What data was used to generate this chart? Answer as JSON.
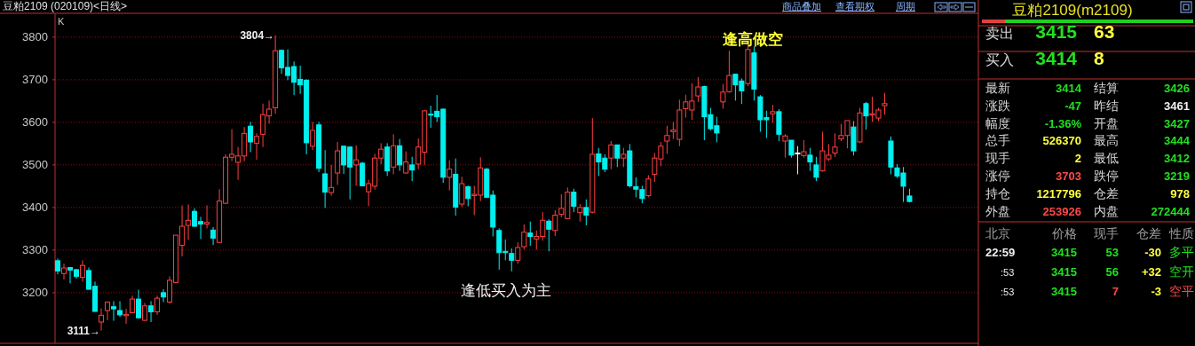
{
  "chart_data": [
    {
      "type": "candlestick",
      "title": "豆粕2109 (020109)<日线>",
      "ylabel": "K",
      "categories": [
        null,
        null,
        null,
        null,
        null,
        null,
        null,
        null,
        null,
        null,
        null,
        null,
        null,
        null,
        null,
        null,
        null,
        null,
        null,
        null,
        null,
        null,
        null,
        null,
        null,
        null,
        null,
        null,
        null,
        null,
        null,
        null,
        null,
        null,
        null,
        null,
        null,
        null,
        null,
        null,
        null,
        null,
        null,
        null,
        null,
        null,
        null,
        null,
        null,
        null,
        null,
        null,
        null,
        null,
        null,
        null,
        null,
        null,
        null,
        null,
        null,
        null,
        null,
        null,
        null,
        null,
        null,
        null,
        null,
        null,
        null,
        null,
        null,
        null,
        null,
        null,
        null,
        null,
        null,
        null,
        null,
        null,
        null,
        null,
        null,
        null,
        null,
        null,
        null,
        null,
        null,
        null,
        null,
        null,
        null,
        null,
        null,
        null,
        null,
        null,
        null,
        null,
        null,
        null,
        null,
        null,
        null,
        null,
        null,
        null,
        null,
        null,
        null,
        null,
        null,
        null,
        null,
        null,
        null,
        null,
        null,
        null,
        null,
        null,
        null,
        null,
        null,
        null,
        null,
        null,
        null,
        null,
        null,
        null,
        null,
        null,
        null,
        null
      ],
      "ohlc": [
        [
          3275,
          3280,
          3243,
          3251
        ],
        [
          3245,
          3268,
          3231,
          3258
        ],
        [
          3259,
          3260,
          3222,
          3253
        ],
        [
          3254,
          3256,
          3233,
          3238
        ],
        [
          3236,
          3276,
          3226,
          3264
        ],
        [
          3252,
          3259,
          3207,
          3208
        ],
        [
          3215,
          3226,
          3155,
          3156
        ],
        [
          3131,
          3163,
          3111,
          3147
        ],
        [
          3158,
          3179,
          3135,
          3178
        ],
        [
          3167,
          3180,
          3134,
          3162
        ],
        [
          3158,
          3180,
          3143,
          3148
        ],
        [
          3146,
          3162,
          3127,
          3149
        ],
        [
          3153,
          3193,
          3153,
          3185
        ],
        [
          3185,
          3207,
          3139,
          3141
        ],
        [
          3135,
          3176,
          3134,
          3169
        ],
        [
          3169,
          3180,
          3131,
          3155
        ],
        [
          3155,
          3193,
          3148,
          3187
        ],
        [
          3200,
          3208,
          3178,
          3190
        ],
        [
          3178,
          3238,
          3174,
          3229
        ],
        [
          3224,
          3335,
          3222,
          3335
        ],
        [
          3311,
          3405,
          3285,
          3356
        ],
        [
          3358,
          3407,
          3324,
          3370
        ],
        [
          3391,
          3398,
          3354,
          3356
        ],
        [
          3367,
          3378,
          3326,
          3361
        ],
        [
          3361,
          3405,
          3351,
          3365
        ],
        [
          3347,
          3354,
          3312,
          3328
        ],
        [
          3318,
          3443,
          3317,
          3415
        ],
        [
          3410,
          3525,
          3408,
          3518
        ],
        [
          3518,
          3584,
          3509,
          3525
        ],
        [
          3506,
          3542,
          3465,
          3521
        ],
        [
          3521,
          3589,
          3509,
          3574
        ],
        [
          3591,
          3601,
          3530,
          3554
        ],
        [
          3551,
          3574,
          3512,
          3567
        ],
        [
          3572,
          3644,
          3542,
          3618
        ],
        [
          3615,
          3651,
          3597,
          3631
        ],
        [
          3634,
          3804,
          3620,
          3768
        ],
        [
          3769,
          3771,
          3714,
          3728
        ],
        [
          3729,
          3771,
          3699,
          3710
        ],
        [
          3731,
          3743,
          3664,
          3694
        ],
        [
          3701,
          3733,
          3667,
          3688
        ],
        [
          3699,
          3701,
          3525,
          3552
        ],
        [
          3544,
          3601,
          3535,
          3581
        ],
        [
          3594,
          3601,
          3483,
          3492
        ],
        [
          3479,
          3535,
          3399,
          3436
        ],
        [
          3435,
          3500,
          3428,
          3447
        ],
        [
          3481,
          3554,
          3453,
          3533
        ],
        [
          3544,
          3544,
          3479,
          3500
        ],
        [
          3542,
          3542,
          3419,
          3495
        ],
        [
          3500,
          3546,
          3451,
          3512
        ],
        [
          3504,
          3507,
          3450,
          3451
        ],
        [
          3437,
          3465,
          3403,
          3456
        ],
        [
          3450,
          3526,
          3442,
          3516
        ],
        [
          3516,
          3551,
          3502,
          3537
        ],
        [
          3542,
          3551,
          3474,
          3486
        ],
        [
          3495,
          3572,
          3478,
          3545
        ],
        [
          3545,
          3561,
          3486,
          3500
        ],
        [
          3481,
          3532,
          3479,
          3507
        ],
        [
          3500,
          3519,
          3462,
          3488
        ],
        [
          3502,
          3562,
          3490,
          3542
        ],
        [
          3530,
          3629,
          3500,
          3627
        ],
        [
          3619,
          3639,
          3587,
          3617
        ],
        [
          3626,
          3664,
          3601,
          3613
        ],
        [
          3631,
          3632,
          3458,
          3471
        ],
        [
          3471,
          3511,
          3440,
          3490
        ],
        [
          3478,
          3515,
          3381,
          3401
        ],
        [
          3408,
          3472,
          3401,
          3456
        ],
        [
          3449,
          3451,
          3403,
          3421
        ],
        [
          3428,
          3451,
          3382,
          3431
        ],
        [
          3429,
          3518,
          3415,
          3493
        ],
        [
          3490,
          3493,
          3422,
          3424
        ],
        [
          3429,
          3440,
          3332,
          3354
        ],
        [
          3346,
          3351,
          3254,
          3294
        ],
        [
          3297,
          3325,
          3276,
          3294
        ],
        [
          3292,
          3304,
          3250,
          3276
        ],
        [
          3276,
          3318,
          3268,
          3306
        ],
        [
          3308,
          3360,
          3301,
          3342
        ],
        [
          3340,
          3367,
          3310,
          3332
        ],
        [
          3326,
          3346,
          3301,
          3332
        ],
        [
          3332,
          3389,
          3322,
          3370
        ],
        [
          3368,
          3372,
          3297,
          3349
        ],
        [
          3346,
          3394,
          3333,
          3382
        ],
        [
          3384,
          3431,
          3377,
          3398
        ],
        [
          3374,
          3447,
          3372,
          3436
        ],
        [
          3436,
          3444,
          3389,
          3403
        ],
        [
          3388,
          3408,
          3367,
          3400
        ],
        [
          3400,
          3419,
          3358,
          3382
        ],
        [
          3389,
          3610,
          3386,
          3525
        ],
        [
          3526,
          3540,
          3474,
          3507
        ],
        [
          3516,
          3525,
          3483,
          3490
        ],
        [
          3516,
          3556,
          3490,
          3547
        ],
        [
          3547,
          3547,
          3495,
          3516
        ],
        [
          3516,
          3540,
          3495,
          3525
        ],
        [
          3533,
          3549,
          3447,
          3451
        ],
        [
          3449,
          3471,
          3424,
          3443
        ],
        [
          3442,
          3451,
          3410,
          3421
        ],
        [
          3428,
          3476,
          3424,
          3467
        ],
        [
          3478,
          3528,
          3460,
          3516
        ],
        [
          3514,
          3554,
          3497,
          3544
        ],
        [
          3556,
          3592,
          3526,
          3569
        ],
        [
          3578,
          3601,
          3561,
          3582
        ],
        [
          3560,
          3653,
          3544,
          3629
        ],
        [
          3632,
          3665,
          3611,
          3648
        ],
        [
          3629,
          3692,
          3606,
          3650
        ],
        [
          3662,
          3706,
          3648,
          3683
        ],
        [
          3684,
          3686,
          3558,
          3613
        ],
        [
          3618,
          3634,
          3581,
          3585
        ],
        [
          3592,
          3613,
          3553,
          3575
        ],
        [
          3648,
          3690,
          3632,
          3671
        ],
        [
          3672,
          3768,
          3669,
          3710
        ],
        [
          3713,
          3714,
          3651,
          3688
        ],
        [
          3697,
          3703,
          3643,
          3674
        ],
        [
          3691,
          3785,
          3685,
          3771
        ],
        [
          3763,
          3778,
          3651,
          3678
        ],
        [
          3660,
          3664,
          3578,
          3606
        ],
        [
          3611,
          3627,
          3563,
          3606
        ],
        [
          3620,
          3641,
          3599,
          3625
        ],
        [
          3625,
          3631,
          3556,
          3572
        ],
        [
          3556,
          3572,
          3517,
          3568
        ],
        [
          3558,
          3558,
          3517,
          3523
        ],
        [
          3528,
          3544,
          3478,
          3528
        ],
        [
          3522,
          3558,
          3517,
          3531
        ],
        [
          3523,
          3540,
          3486,
          3507
        ],
        [
          3500,
          3519,
          3462,
          3471
        ],
        [
          3486,
          3578,
          3484,
          3533
        ],
        [
          3514,
          3549,
          3509,
          3523
        ],
        [
          3528,
          3574,
          3519,
          3542
        ],
        [
          3561,
          3596,
          3556,
          3569
        ],
        [
          3569,
          3604,
          3539,
          3604
        ],
        [
          3589,
          3603,
          3522,
          3533
        ],
        [
          3554,
          3634,
          3551,
          3622
        ],
        [
          3644,
          3648,
          3583,
          3615
        ],
        [
          3617,
          3660,
          3601,
          3620
        ],
        [
          3610,
          3634,
          3603,
          3629
        ],
        [
          3639,
          3669,
          3618,
          3644
        ],
        [
          3556,
          3567,
          3478,
          3495
        ],
        [
          3493,
          3502,
          3469,
          3474
        ],
        [
          3481,
          3495,
          3413,
          3450
        ],
        [
          3427,
          3444,
          3412,
          3414
        ]
      ],
      "ylim": [
        3081,
        3856
      ],
      "yticks": [
        3200,
        3300,
        3400,
        3500,
        3600,
        3700,
        3800
      ],
      "grid": "y",
      "annotations": [
        "3804→",
        "3111→",
        "逢高做空",
        "逢低买入为主",
        "商品叠加",
        "查看期权",
        "周期"
      ]
    },
    {
      "type": "other",
      "title": "豆粕2109(m2109)",
      "annotations": [
        "卖出",
        "3415",
        "63",
        "买入",
        "3414",
        "8",
        "最新",
        "3414",
        "结算",
        "3426",
        "涨跌",
        "-47",
        "昨结",
        "3461",
        "幅度",
        "-1.36%",
        "开盘",
        "3427",
        "总手",
        "526370",
        "最高",
        "3444",
        "现手",
        "2",
        "最低",
        "3412",
        "涨停",
        "3703",
        "跌停",
        "3219",
        "持仓",
        "1217796",
        "仓差",
        "978",
        "外盘",
        "253926",
        "内盘",
        "272444",
        "北京",
        "价格",
        "现手",
        "仓差",
        "性质",
        "22:59",
        "3415",
        "53",
        "-30",
        "多平",
        ":53",
        "3415",
        "56",
        "+32",
        "空开",
        ":53",
        "3415",
        "7",
        "-3",
        "空平"
      ]
    }
  ]
}
